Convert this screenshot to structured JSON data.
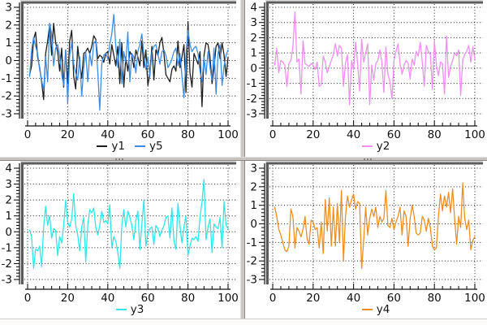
{
  "app": {
    "description": "four-pane line plot workspace with splitter bars"
  },
  "colors": {
    "background": "#ffffff",
    "grid": "#1b1b1b",
    "plot_frame": "#5a5a5a",
    "splitter": "#c6c3c0",
    "y1": "#1c1c1c",
    "y5": "#3d8ce4",
    "y2": "#ee90ee",
    "y3": "#2ee8e8",
    "y4": "#ef8e20"
  },
  "chart_data": [
    {
      "type": "line",
      "panel": "top-left",
      "x_range": [
        0,
        100
      ],
      "y_range": [
        -3,
        3
      ],
      "x_ticks": [
        0,
        20,
        40,
        60,
        80,
        100
      ],
      "y_ticks": [
        3,
        2,
        1,
        0,
        -1,
        -2,
        -3
      ],
      "x_minor_step": 4,
      "y_minor_step": 0.2,
      "grid": "dotted",
      "legend_position": "bottom",
      "x_start": 1,
      "x_step": 1,
      "series": [
        {
          "name": "y1",
          "color": "#1c1c1c",
          "values": [
            -0.8,
            -0.3,
            1.2,
            1.6,
            0.2,
            -0.4,
            -1.2,
            -2.2,
            0.4,
            1.1,
            2.0,
            0.3,
            2.1,
            1.0,
            0.5,
            -0.6,
            0.7,
            -1.5,
            0.6,
            -1.3,
            1.1,
            1.7,
            -0.9,
            -1.6,
            0.8,
            -0.2,
            -1.0,
            0.4,
            0.5,
            0.7,
            0.4,
            0.8,
            1.4,
            1.2,
            0.1,
            0.3,
            0.2,
            -0.1,
            0.4,
            0.5,
            -0.2,
            0.9,
            0.3,
            -0.3,
            0.8,
            -1.3,
            1.0,
            -1.5,
            0.2,
            -0.6,
            0.5,
            0.3,
            -0.4,
            0.6,
            0.2,
            -0.3,
            1.1,
            -0.4,
            0.6,
            -1.4,
            -0.7,
            0.8,
            -1.1,
            0.6,
            0.3,
            1.0,
            1.3,
            0.4,
            -0.8,
            -1.0,
            -1.2,
            -0.5,
            -0.3,
            -0.6,
            1.1,
            -0.4,
            0.2,
            0.9,
            -1.8,
            2.2,
            -0.7,
            -1.5,
            0.4,
            0.1,
            -0.2,
            0.5,
            -2.6,
            0.3,
            1.0,
            0.9,
            0.2,
            -1.3,
            -0.4,
            0.8,
            1.0,
            0.1,
            1.0,
            0.3,
            -0.9,
            0.2
          ]
        },
        {
          "name": "y5",
          "color": "#3d8ce4",
          "values": [
            -0.9,
            0.6,
            1.3,
            0.8,
            0.4,
            -0.5,
            -1.1,
            -1.7,
            0.2,
            -1.2,
            2.1,
            1.5,
            -0.3,
            0.7,
            0.9,
            0.3,
            -0.8,
            -1.4,
            0.6,
            -2.4,
            0.3,
            1.0,
            -0.2,
            -0.7,
            -1.1,
            0.2,
            -2.0,
            -0.4,
            0.5,
            -1.2,
            0.4,
            -0.3,
            1.0,
            1.1,
            -0.6,
            -2.8,
            -0.2,
            0.3,
            0.4,
            0.1,
            0.9,
            1.5,
            2.6,
            0.8,
            -0.4,
            1.2,
            -1.3,
            0.5,
            -0.1,
            1.6,
            -1.2,
            0.4,
            0.2,
            -0.7,
            0.5,
            0.9,
            1.5,
            0.3,
            -0.5,
            0.2,
            -0.9,
            0.5,
            0.8,
            0.9,
            0.4,
            -0.2,
            0.5,
            0.6,
            0.3,
            -0.4,
            -0.2,
            0.1,
            0.5,
            0.7,
            -0.3,
            0.4,
            -0.9,
            -2.1,
            0.3,
            1.7,
            0.9,
            0.5,
            0.7,
            0.8,
            0.4,
            -0.6,
            -1.2,
            0.2,
            -0.8,
            0.5,
            -0.4,
            -1.1,
            0.7,
            -1.9,
            0.4,
            0.9,
            -1.4,
            -0.3,
            0.3,
            0.6
          ]
        }
      ]
    },
    {
      "type": "line",
      "panel": "top-right",
      "x_range": [
        0,
        100
      ],
      "y_range": [
        -3,
        4
      ],
      "x_ticks": [
        0,
        20,
        40,
        60,
        80,
        100
      ],
      "y_ticks": [
        4,
        3,
        2,
        1,
        0,
        -1,
        -2,
        -3
      ],
      "x_minor_step": 4,
      "y_minor_step": 0.2,
      "grid": "dotted",
      "legend_position": "bottom",
      "x_start": 1,
      "x_step": 1,
      "series": [
        {
          "name": "y2",
          "color": "#ee90ee",
          "values": [
            0.2,
            1.3,
            -0.3,
            0.5,
            0.4,
            0.2,
            -1.2,
            0.3,
            0.5,
            1.4,
            3.7,
            0.4,
            0.6,
            -1.7,
            1.8,
            0.3,
            0.2,
            0.1,
            0.3,
            0.2,
            -0.1,
            0.4,
            -1.2,
            -1.1,
            0.8,
            0.4,
            -0.3,
            0.1,
            0.5,
            0.9,
            1.6,
            0.8,
            1.5,
            1.3,
            -1.2,
            0.3,
            0.9,
            -2.4,
            0.5,
            -0.1,
            1.7,
            0.3,
            -1.5,
            1.9,
            0.4,
            1.0,
            1.6,
            -2.4,
            0.2,
            -0.8,
            0.3,
            0.5,
            1.2,
            0.4,
            -1.6,
            1.4,
            -0.4,
            -0.9,
            -2.0,
            0.5,
            1.1,
            1.6,
            0.3,
            -0.4,
            0.2,
            0.5,
            0.3,
            -0.7,
            0.6,
            0.2,
            1.1,
            0.8,
            1.7,
            0.4,
            -1.2,
            1.5,
            1.1,
            0.9,
            -1.4,
            1.8,
            0.2,
            -0.5,
            0.4,
            0.3,
            -1.7,
            2.1,
            -0.6,
            0.1,
            0.5,
            1.0,
            0.8,
            1.2,
            -1.8,
            0.5,
            0.9,
            1.1,
            1.5,
            0.4,
            1.4,
            0.6
          ]
        }
      ]
    },
    {
      "type": "line",
      "panel": "bottom-left",
      "x_range": [
        0,
        100
      ],
      "y_range": [
        -3,
        4
      ],
      "x_ticks": [
        0,
        20,
        40,
        60,
        80,
        100
      ],
      "y_ticks": [
        4,
        3,
        2,
        1,
        0,
        -1,
        -2,
        -3
      ],
      "x_minor_step": 4,
      "y_minor_step": 0.2,
      "grid": "dotted",
      "legend_position": "bottom",
      "x_start": 1,
      "x_step": 1,
      "series": [
        {
          "name": "y3",
          "color": "#2ee8e8",
          "values": [
            0.1,
            -0.3,
            -2.3,
            -1.1,
            -1.2,
            -0.9,
            -2.2,
            0.3,
            1.6,
            0.4,
            1.0,
            -0.4,
            0.2,
            0.1,
            -1.5,
            -0.3,
            -0.7,
            0.4,
            2.0,
            0.6,
            0.3,
            0.8,
            2.4,
            0.4,
            -0.2,
            -1.2,
            0.3,
            0.9,
            -1.9,
            0.4,
            1.4,
            1.2,
            1.5,
            0.3,
            -0.2,
            0.4,
            1.3,
            0.6,
            0.7,
            0.5,
            1.7,
            -1.0,
            -0.3,
            -0.6,
            -1.3,
            -2.3,
            0.4,
            1.4,
            0.3,
            1.3,
            0.9,
            0.4,
            -0.5,
            0.7,
            1.3,
            -1.1,
            0.5,
            2.0,
            -0.9,
            -0.1,
            0.2,
            0.3,
            -0.8,
            0.4,
            0.2,
            -0.3,
            0.1,
            0.4,
            0.9,
            1.0,
            -0.4,
            1.5,
            -0.6,
            -1.1,
            1.8,
            0.4,
            -0.7,
            0.3,
            1.0,
            -1.5,
            -0.9,
            -0.4,
            -0.5,
            -0.3,
            -0.6,
            0.9,
            1.9,
            3.3,
            -0.5,
            0.3,
            0.8,
            -1.3,
            0.5,
            0.3,
            0.2,
            0.9,
            -1.0,
            1.9,
            0.4,
            0.2
          ]
        }
      ]
    },
    {
      "type": "line",
      "panel": "bottom-right",
      "x_range": [
        0,
        100
      ],
      "y_range": [
        -3,
        3
      ],
      "x_ticks": [
        0,
        20,
        40,
        60,
        80,
        100
      ],
      "y_ticks": [
        3,
        2,
        1,
        0,
        -1,
        -2,
        -3
      ],
      "x_minor_step": 4,
      "y_minor_step": 0.2,
      "grid": "dotted",
      "legend_position": "bottom",
      "x_start": 1,
      "x_step": 1,
      "series": [
        {
          "name": "y4",
          "color": "#ef8e20",
          "values": [
            0.9,
            0.4,
            -0.3,
            -0.6,
            -1.0,
            -1.4,
            -1.5,
            -1.2,
            0.8,
            0.4,
            -1.3,
            -0.2,
            -0.4,
            -0.7,
            -0.3,
            0.4,
            -0.8,
            -1.1,
            0.2,
            0.1,
            -0.3,
            -0.2,
            -1.3,
            0.1,
            -1.6,
            1.3,
            -0.4,
            1.4,
            -1.2,
            0.9,
            -1.2,
            1.1,
            -1.0,
            1.8,
            -2.0,
            0.4,
            1.5,
            0.9,
            1.3,
            1.6,
            0.8,
            1.2,
            1.1,
            -2.4,
            -0.9,
            0.9,
            -0.6,
            0.3,
            0.8,
            0.4,
            0.9,
            -0.2,
            0.4,
            0.1,
            0.3,
            1.8,
            -0.1,
            -0.2,
            0.3,
            -0.3,
            0.1,
            0.4,
            0.9,
            -0.6,
            0.7,
            0.4,
            -1.2,
            0.3,
            1.0,
            0.4,
            -0.5,
            -0.6,
            -0.5,
            0.4,
            0.2,
            -0.4,
            0.3,
            -0.2,
            -1.2,
            -1.4,
            -1.3,
            0.4,
            1.6,
            0.7,
            1.5,
            0.9,
            1.7,
            0.6,
            1.9,
            0.3,
            -1.1,
            0.4,
            -0.2,
            2.2,
            0.3,
            -0.3,
            0.2,
            -1.4,
            -0.9,
            -0.7
          ]
        }
      ]
    }
  ]
}
